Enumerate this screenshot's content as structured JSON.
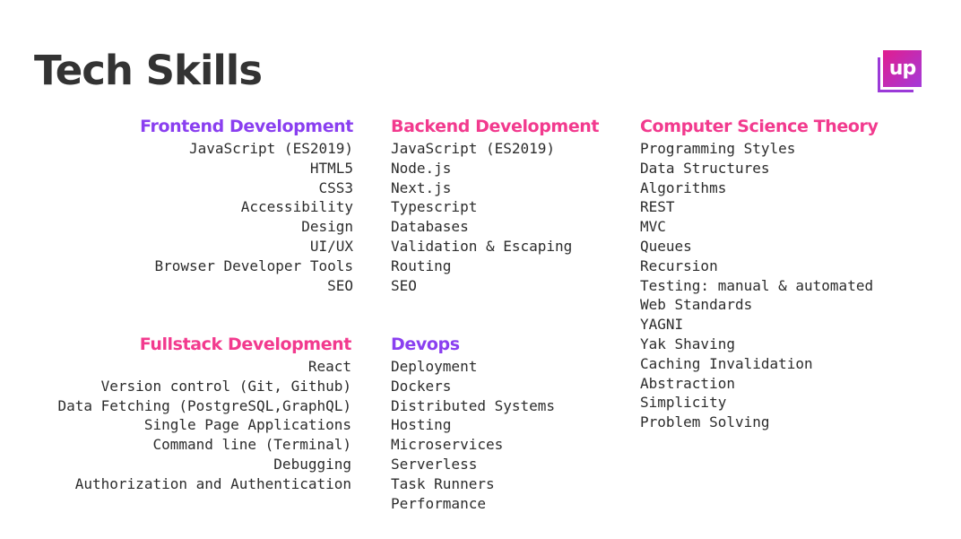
{
  "title": "Tech Skills",
  "logo_text": "up",
  "colors": {
    "purple": "#8a3ff0",
    "pink": "#f23a8e",
    "text": "#2c2c2c",
    "title": "#333333"
  },
  "sections": {
    "frontend": {
      "heading": "Frontend Development",
      "items": [
        "JavaScript (ES2019)",
        "HTML5",
        "CSS3",
        "Accessibility",
        "Design",
        "UI/UX",
        "Browser Developer Tools",
        "SEO"
      ]
    },
    "backend": {
      "heading": "Backend Development",
      "items": [
        "JavaScript (ES2019)",
        "Node.js",
        "Next.js",
        "Typescript",
        "Databases",
        "Validation & Escaping",
        "Routing",
        "SEO"
      ]
    },
    "cs_theory": {
      "heading": "Computer Science Theory",
      "items": [
        "Programming Styles",
        "Data Structures",
        "Algorithms",
        "REST",
        "MVC",
        "Queues",
        "Recursion",
        "Testing: manual & automated",
        "Web Standards",
        "YAGNI",
        "Yak Shaving",
        "Caching Invalidation",
        "Abstraction",
        "Simplicity",
        "Problem Solving"
      ]
    },
    "fullstack": {
      "heading": "Fullstack Development",
      "items": [
        "React",
        "Version control (Git, Github)",
        "Data Fetching (PostgreSQL,GraphQL)",
        "Single Page Applications",
        "Command line (Terminal)",
        "Debugging",
        "Authorization and Authentication"
      ]
    },
    "devops": {
      "heading": "Devops",
      "items": [
        "Deployment",
        "Dockers",
        "Distributed Systems",
        "Hosting",
        "Microservices",
        "Serverless",
        "Task Runners",
        "Performance"
      ]
    }
  }
}
